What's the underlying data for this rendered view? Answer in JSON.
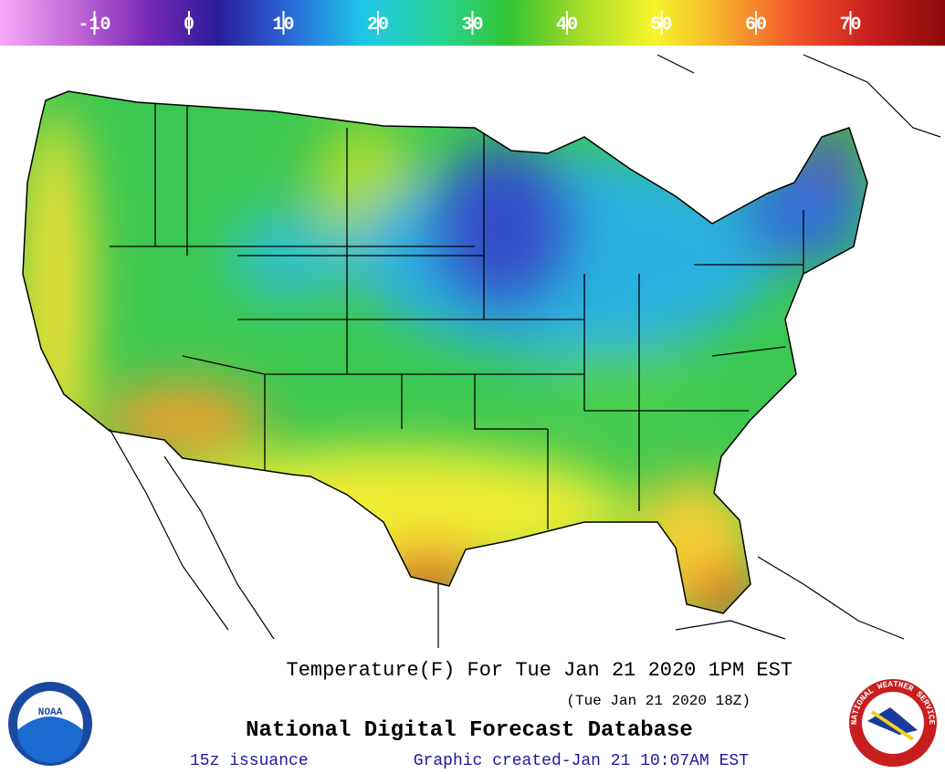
{
  "colorbar": {
    "lim": [
      -20,
      80
    ],
    "ticks": [
      -10,
      0,
      10,
      20,
      30,
      40,
      50,
      60,
      70
    ],
    "colors": [
      "#f6a8f6",
      "#c46ad8",
      "#7a2ab8",
      "#2a1c9a",
      "#2a6ad8",
      "#1ec6e8",
      "#28d69a",
      "#32c432",
      "#a6dc28",
      "#f6f62a",
      "#f6a82a",
      "#f0502a",
      "#c81e1e",
      "#8a0a0a"
    ]
  },
  "title": "Temperature(F) For Tue Jan 21 2020  1PM EST",
  "subtitle": "(Tue Jan 21 2020 18Z)",
  "product": "National Digital Forecast Database",
  "issuance": "15z issuance",
  "created": "Graphic created-Jan 21 10:07AM EST",
  "logos": {
    "noaa": "NOAA",
    "nws": "NATIONAL WEATHER SERVICE"
  }
}
